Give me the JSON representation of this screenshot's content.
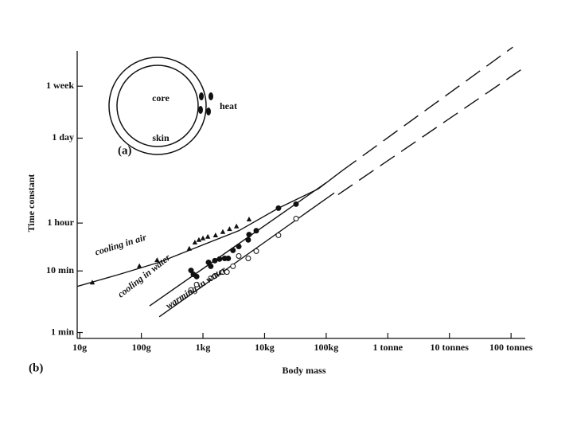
{
  "chart_data": {
    "type": "scatter",
    "x_label": "Body mass",
    "y_label": "Time constant",
    "panel_label": "(b)",
    "log_x": true,
    "log_y": true,
    "xlim": [
      9.1,
      170000000
    ],
    "ylim": [
      0.8,
      45000
    ],
    "xticks": [
      {
        "value": 10,
        "label": "10g"
      },
      {
        "value": 100,
        "label": "100g"
      },
      {
        "value": 1000,
        "label": "1kg"
      },
      {
        "value": 10000,
        "label": "10kg"
      },
      {
        "value": 100000,
        "label": "100kg"
      },
      {
        "value": 1000000,
        "label": "1 tonne"
      },
      {
        "value": 10000000,
        "label": "10 tonnes"
      },
      {
        "value": 100000000,
        "label": "100 tonnes"
      }
    ],
    "yticks": [
      {
        "value": 1,
        "label": "1 min"
      },
      {
        "value": 10,
        "label": "10 min"
      },
      {
        "value": 60,
        "label": "1 hour"
      },
      {
        "value": 1440,
        "label": "1 day"
      },
      {
        "value": 10080,
        "label": "1 week"
      }
    ],
    "series": [
      {
        "name": "cooling in air",
        "marker": "triangle",
        "color": "#111",
        "x": [
          16,
          93,
          180,
          600,
          740,
          860,
          1000,
          1200,
          1600,
          2100,
          2700,
          3500,
          5600
        ],
        "values": [
          6.5,
          12,
          15,
          23,
          29,
          32,
          34,
          36,
          38,
          43,
          48,
          53,
          69
        ]
      },
      {
        "name": "cooling in water",
        "marker": "circle-filled",
        "color": "#111",
        "x": [
          640,
          700,
          790,
          1230,
          1340,
          1560,
          1860,
          2250,
          2570,
          3070,
          3810,
          5430,
          5600,
          7330,
          16800,
          32400
        ],
        "values": [
          10.2,
          8.8,
          8.1,
          13.8,
          11.9,
          14.7,
          15.6,
          16,
          16,
          21.6,
          25,
          32,
          39,
          45,
          105,
          122
        ]
      },
      {
        "name": "warming in water",
        "marker": "circle-open",
        "color": "#111",
        "x": [
          640,
          790,
          1340,
          1560,
          2100,
          2450,
          3070,
          3810,
          5430,
          7330,
          16800,
          32400
        ],
        "values": [
          4.9,
          6,
          7.6,
          8.3,
          9.6,
          9.6,
          11.9,
          17.5,
          16,
          21,
          38,
          71
        ]
      }
    ],
    "curves": [
      {
        "style": "solid",
        "x": [
          9.1,
          44,
          195,
          860,
          3810,
          16800,
          74000,
          181000
        ],
        "values": [
          5.6,
          8.8,
          13.8,
          25,
          45,
          105,
          215,
          425
        ]
      },
      {
        "style": "solid",
        "x": [
          136,
          100000
        ],
        "values": [
          2.7,
          272
        ]
      },
      {
        "style": "solid",
        "x": [
          195,
          135000
        ],
        "values": [
          1.8,
          185
        ]
      },
      {
        "style": "dashed",
        "x": [
          181000,
          107000000
        ],
        "values": [
          425,
          43400
        ]
      },
      {
        "style": "dashed",
        "x": [
          156000,
          168000000
        ],
        "values": [
          174,
          20600
        ]
      }
    ],
    "inset": {
      "label": "(a)",
      "core": "core",
      "skin": "skin",
      "heat": "heat"
    }
  }
}
